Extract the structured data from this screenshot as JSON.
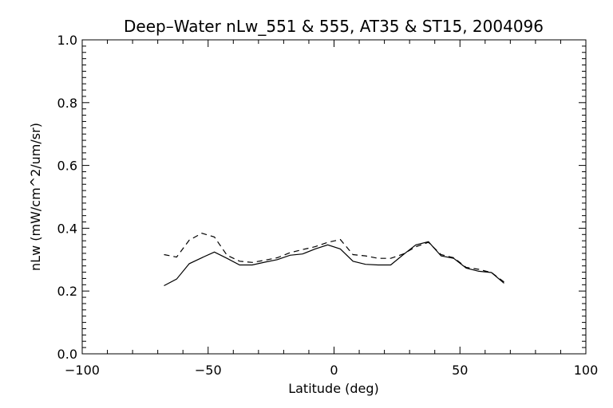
{
  "chart_data": {
    "type": "line",
    "title": "Deep–Water nLw_551 & 555, AT35 & ST15, 2004096",
    "xlabel": "Latitude (deg)",
    "ylabel": "nLw (mW/cm^2/um/sr)",
    "xlim": [
      -100,
      100
    ],
    "ylim": [
      0.0,
      1.0
    ],
    "xticks": [
      -100,
      -50,
      0,
      50,
      100
    ],
    "xtick_labels": [
      "−100",
      "−50",
      "0",
      "50",
      "100"
    ],
    "yticks": [
      0.0,
      0.2,
      0.4,
      0.6,
      0.8,
      1.0
    ],
    "ytick_labels": [
      "0.0",
      "0.2",
      "0.4",
      "0.6",
      "0.8",
      "1.0"
    ],
    "grid": false,
    "series": [
      {
        "style": "solid",
        "x": [
          -67.5,
          -62.5,
          -57.5,
          -52.5,
          -47.5,
          -42.5,
          -37.5,
          -32.5,
          -27.5,
          -22.5,
          -17.5,
          -12.5,
          -7.5,
          -2.5,
          2.5,
          7.5,
          12.5,
          17.5,
          22.5,
          27.5,
          32.5,
          37.5,
          42.5,
          47.5,
          52.5,
          57.5,
          62.5,
          67.5
        ],
        "y": [
          0.217,
          0.238,
          0.287,
          0.306,
          0.324,
          0.304,
          0.283,
          0.283,
          0.292,
          0.3,
          0.314,
          0.318,
          0.334,
          0.347,
          0.334,
          0.295,
          0.285,
          0.283,
          0.283,
          0.316,
          0.347,
          0.357,
          0.312,
          0.304,
          0.273,
          0.263,
          0.259,
          0.225
        ]
      },
      {
        "style": "dashed",
        "x": [
          -67.5,
          -62.5,
          -57.5,
          -52.5,
          -47.5,
          -42.5,
          -37.5,
          -32.5,
          -27.5,
          -22.5,
          -17.5,
          -12.5,
          -7.5,
          -2.5,
          2.5,
          7.5,
          12.5,
          17.5,
          22.5,
          27.5,
          32.5,
          37.5,
          42.5,
          47.5,
          52.5,
          57.5,
          62.5,
          67.5
        ],
        "y": [
          0.316,
          0.308,
          0.362,
          0.384,
          0.372,
          0.314,
          0.295,
          0.291,
          0.298,
          0.306,
          0.322,
          0.332,
          0.341,
          0.355,
          0.364,
          0.316,
          0.312,
          0.304,
          0.304,
          0.318,
          0.341,
          0.355,
          0.316,
          0.306,
          0.275,
          0.269,
          0.259,
          0.229
        ]
      }
    ]
  }
}
